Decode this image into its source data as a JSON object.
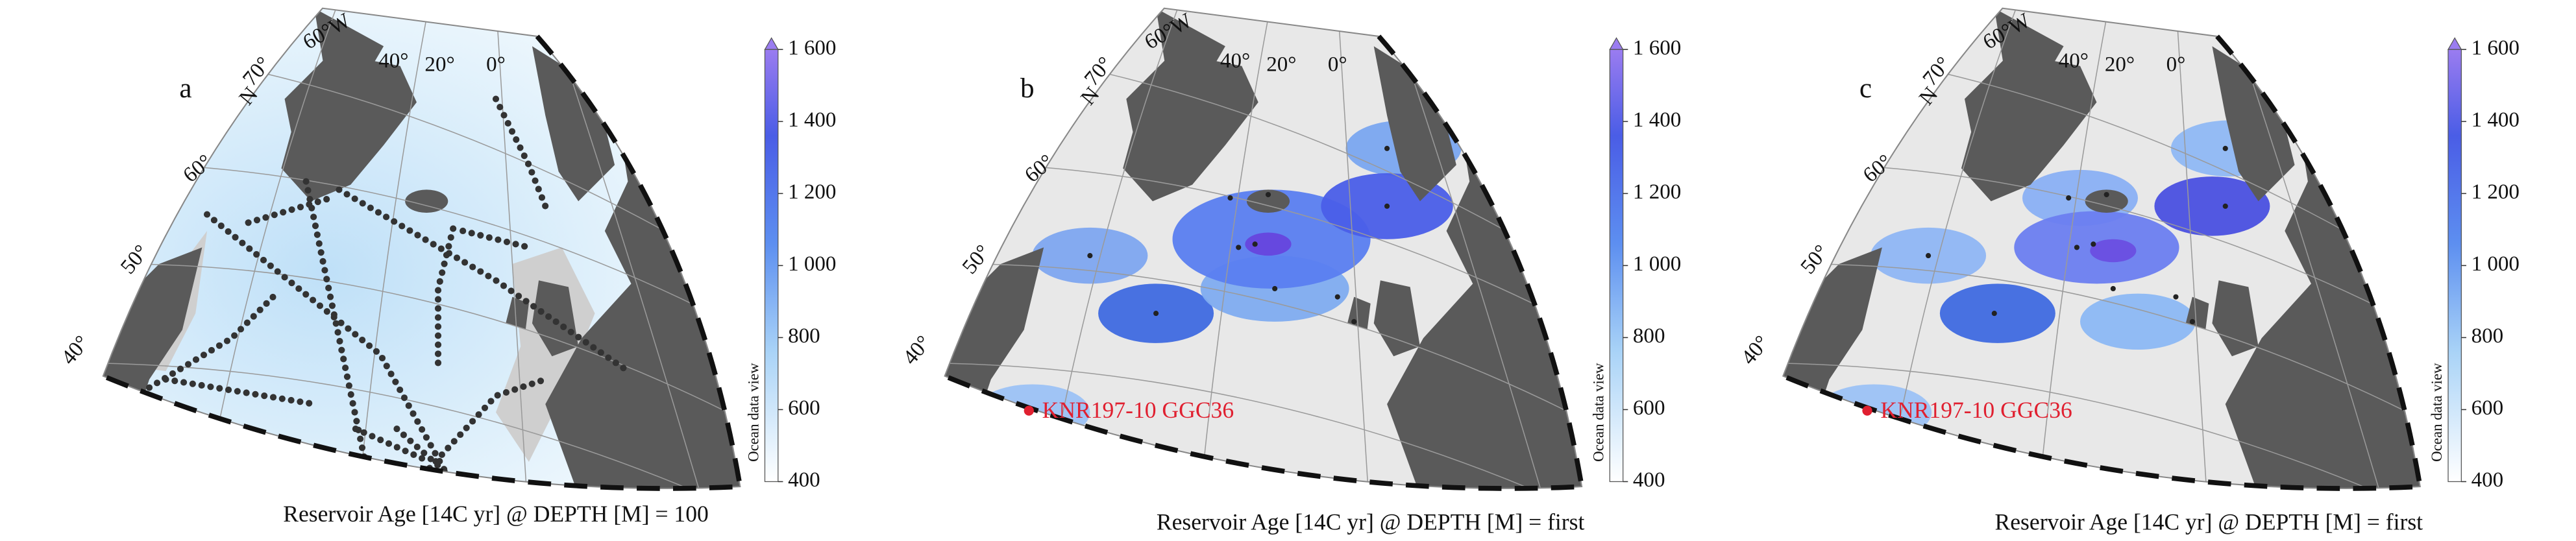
{
  "panels": [
    {
      "label": "a",
      "graticule": [
        "60°W",
        "40°",
        "20°",
        "0°",
        "70°",
        "N",
        "60°",
        "50°",
        "40°"
      ],
      "colorbar": {
        "label": "Ocean data view",
        "clim": [
          400,
          1600
        ],
        "ticks": [
          {
            "value": 1600,
            "label": "1 600"
          },
          {
            "value": 1400,
            "label": "1 400"
          },
          {
            "value": 1200,
            "label": "1 200"
          },
          {
            "value": 1000,
            "label": "1 000"
          },
          800,
          600,
          400
        ]
      },
      "caption": "Reservoir Age [14C yr] @ DEPTH [M] = 100"
    },
    {
      "label": "b",
      "graticule": [
        "60°W",
        "40°",
        "20°",
        "0°",
        "70°",
        "N",
        "60°",
        "50°",
        "40°"
      ],
      "annotation": "KNR197-10 GGC36",
      "colorbar": {
        "label": "Ocean data view",
        "clim": [
          400,
          1600
        ],
        "ticks": [
          {
            "value": 1600,
            "label": "1 600"
          },
          {
            "value": 1400,
            "label": "1 400"
          },
          {
            "value": 1200,
            "label": "1 200"
          },
          {
            "value": 1000,
            "label": "1 000"
          },
          800,
          600,
          400
        ]
      },
      "caption": "Reservoir Age [14C yr] @ DEPTH [M] = first"
    },
    {
      "label": "c",
      "graticule": [
        "60°W",
        "40°",
        "20°",
        "0°",
        "70°",
        "N",
        "60°",
        "50°",
        "40°"
      ],
      "annotation": "KNR197-10 GGC36",
      "colorbar": {
        "label": "Ocean data view",
        "clim": [
          400,
          1600
        ],
        "ticks": [
          {
            "value": 1600,
            "label": "1 600"
          },
          {
            "value": 1400,
            "label": "1 400"
          },
          {
            "value": 1200,
            "label": "1 200"
          },
          {
            "value": 1000,
            "label": "1 000"
          },
          800,
          600,
          400
        ]
      },
      "caption": "Reservoir Age [14C yr] @ DEPTH [M] = first"
    }
  ]
}
